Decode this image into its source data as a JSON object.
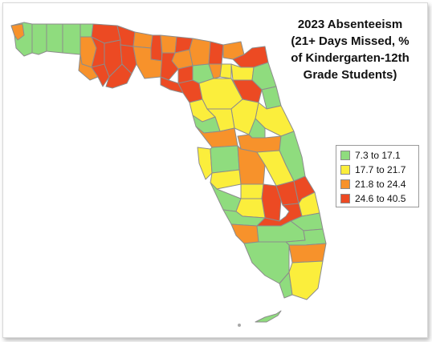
{
  "title": {
    "lines": [
      "2023 Absenteeism",
      "(21+ Days Missed, %",
      "of Kindergarten-12th",
      "Grade Students)"
    ]
  },
  "legend": {
    "items": [
      {
        "label": "7.3 to 17.1",
        "color": "#8fdc7e"
      },
      {
        "label": "17.7 to 21.7",
        "color": "#fbee3c"
      },
      {
        "label": "21.8 to 24.4",
        "color": "#f7922b"
      },
      {
        "label": "24.6 to 40.5",
        "color": "#ec4a23"
      }
    ]
  },
  "map": {
    "region": "Florida",
    "border_color": "#8c8c8c"
  }
}
